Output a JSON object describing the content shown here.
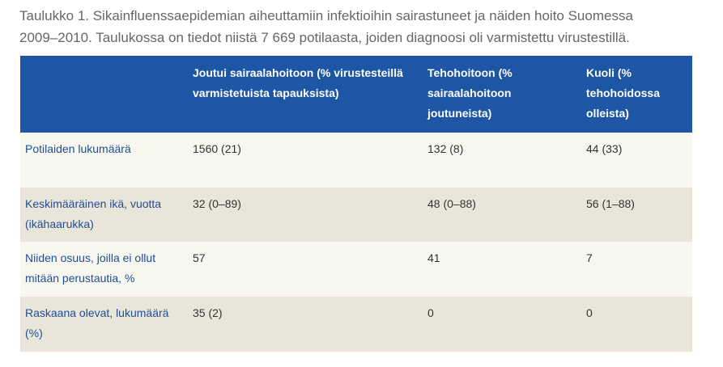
{
  "caption": {
    "line1": "Taulukko 1. Sikainfluenssaepidemian aiheuttamiin infektioihin sairastuneet ja näiden hoito Suomessa",
    "line2": "2009–2010. Taulukossa on tiedot niistä 7 669 potilaasta, joiden diagnoosi oli varmistettu virustestillä."
  },
  "table": {
    "headers": [
      "",
      "Joutui sairaalahoitoon (% virustesteillä varmistetuista tapauksista)",
      "Tehohoitoon (% sairaalahoitoon joutuneista)",
      "Kuoli (% tehohoidossa olleista)"
    ],
    "rows": [
      [
        "Potilaiden lukumäärä",
        "1560 (21)",
        "132 (8)",
        "44 (33)"
      ],
      [
        "Keskimääräinen ikä, vuotta (ikähaarukka)",
        "32 (0–89)",
        "48 (0–88)",
        "56 (1–88)"
      ],
      [
        "Niiden osuus, joilla ei ollut mitään perustautia, %",
        "57",
        "41",
        "7"
      ],
      [
        "Raskaana olevat, lukumäärä (%)",
        "35 (2)",
        "0",
        "0"
      ]
    ]
  },
  "colors": {
    "header_bg": "#1e56a6",
    "row_light": "#f7f6ef",
    "row_dark": "#e9e6d9",
    "row_label": "#1f4e96"
  }
}
